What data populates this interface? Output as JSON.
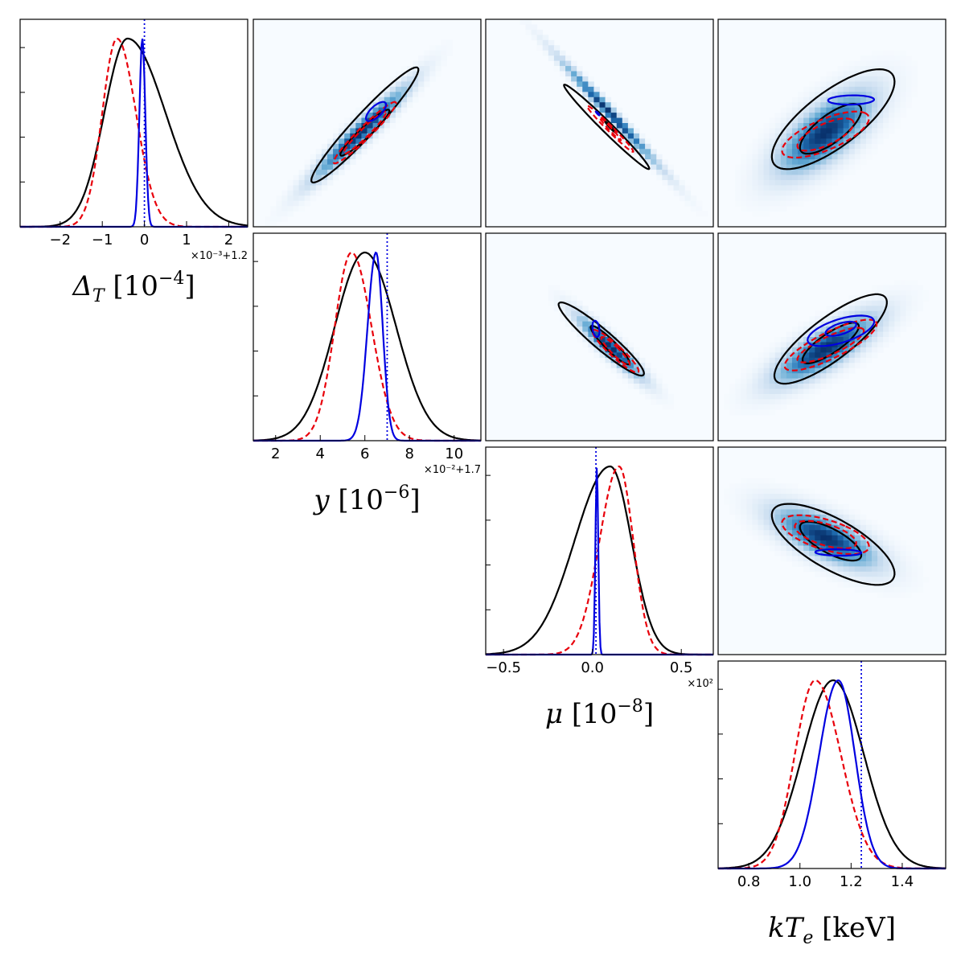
{
  "chart_data": {
    "type": "corner",
    "legend": "none",
    "grid": false,
    "colors": {
      "series_1": "#000000",
      "series_2": "#e8000b",
      "series_3": "#0000e0",
      "truth": "#0000e0",
      "density": "Blues"
    },
    "styles": {
      "series_1": "solid",
      "series_2": "dashed",
      "series_3": "solid",
      "truth": "dotted"
    },
    "parameters": [
      {
        "id": "deltaT",
        "label": "Δ_T [10^-4]",
        "label_parts": {
          "base": "Δ",
          "sub": "T",
          "unit_base": "10",
          "unit_exp": "−4"
        },
        "ticks": [
          -2,
          -1,
          0,
          1,
          2
        ],
        "tick_labels": [
          "−2",
          "−1",
          "0",
          "1",
          "2"
        ],
        "offset_text": "×10⁻³+1.2",
        "range": [
          -2.95,
          2.45
        ],
        "truth": 0.0,
        "marginals": [
          {
            "series": "series_1",
            "mean": -0.4,
            "sigma_left": 0.55,
            "sigma_right": 0.9
          },
          {
            "series": "series_2",
            "mean": -0.65,
            "sigma_left": 0.35,
            "sigma_right": 0.45
          },
          {
            "series": "series_3",
            "mean": -0.05,
            "sigma_left": 0.07,
            "sigma_right": 0.07
          }
        ]
      },
      {
        "id": "y",
        "label": "y [10^-6]",
        "label_parts": {
          "base": "y",
          "sub": "",
          "unit_base": "10",
          "unit_exp": "−6"
        },
        "ticks": [
          2,
          4,
          6,
          8,
          10
        ],
        "tick_labels": [
          "2",
          "4",
          "6",
          "8",
          "10"
        ],
        "offset_text": "×10⁻²+1.7",
        "range": [
          1.0,
          11.2
        ],
        "truth": 7.0,
        "marginals": [
          {
            "series": "series_1",
            "mean": 6.0,
            "sigma_left": 1.35,
            "sigma_right": 1.4
          },
          {
            "series": "series_2",
            "mean": 5.4,
            "sigma_left": 0.75,
            "sigma_right": 0.9
          },
          {
            "series": "series_3",
            "mean": 6.5,
            "sigma_left": 0.38,
            "sigma_right": 0.3
          }
        ]
      },
      {
        "id": "mu",
        "label": "μ [10^-8]",
        "label_parts": {
          "base": "μ",
          "sub": "",
          "unit_base": "10",
          "unit_exp": "−8"
        },
        "ticks": [
          -0.5,
          0.0,
          0.5
        ],
        "tick_labels": [
          "−0.5",
          "0.0",
          "0.5"
        ],
        "offset_text": "×10²",
        "range": [
          -0.6,
          0.68
        ],
        "truth": 0.02,
        "marginals": [
          {
            "series": "series_1",
            "mean": 0.1,
            "sigma_left": 0.2,
            "sigma_right": 0.12
          },
          {
            "series": "series_2",
            "mean": 0.15,
            "sigma_left": 0.11,
            "sigma_right": 0.08
          },
          {
            "series": "series_3",
            "mean": 0.025,
            "sigma_left": 0.008,
            "sigma_right": 0.008
          }
        ]
      },
      {
        "id": "kTe",
        "label": "kT_e [keV]",
        "label_parts": {
          "base": "kT",
          "sub": "e",
          "unit_base": "keV",
          "unit_exp": ""
        },
        "ticks": [
          0.8,
          1.0,
          1.2,
          1.4
        ],
        "tick_labels": [
          "0.8",
          "1.0",
          "1.2",
          "1.4"
        ],
        "offset_text": "",
        "range": [
          0.68,
          1.57
        ],
        "truth": 1.24,
        "marginals": [
          {
            "series": "series_1",
            "mean": 1.13,
            "sigma_left": 0.12,
            "sigma_right": 0.12
          },
          {
            "series": "series_2",
            "mean": 1.06,
            "sigma_left": 0.08,
            "sigma_right": 0.1
          },
          {
            "series": "series_3",
            "mean": 1.15,
            "sigma_left": 0.075,
            "sigma_right": 0.065
          }
        ]
      }
    ],
    "joint_panels": [
      {
        "id": "y-vs-deltaT",
        "row": 0,
        "col": 1,
        "x": "y",
        "y": "deltaT",
        "density": {
          "cx": 5.8,
          "cy": -0.5,
          "sx": 1.4,
          "sy": 0.8,
          "rho": 0.96
        },
        "contours": [
          {
            "series": "series_1",
            "level": "outer",
            "cx": 6.0,
            "cy": -0.3,
            "sx": 2.4,
            "sy": 1.5,
            "rho": 0.96
          },
          {
            "series": "series_1",
            "level": "inner",
            "cx": 6.0,
            "cy": -0.5,
            "sx": 1.1,
            "sy": 0.6,
            "rho": 0.95
          },
          {
            "series": "series_2",
            "level": "outer",
            "cx": 6.0,
            "cy": -0.5,
            "sx": 1.4,
            "sy": 0.8,
            "rho": 0.96
          },
          {
            "series": "series_2",
            "level": "inner",
            "cx": 6.0,
            "cy": -0.5,
            "sx": 0.95,
            "sy": 0.55,
            "rho": 0.96
          },
          {
            "series": "series_3",
            "level": "inner",
            "cx": 6.5,
            "cy": 0.05,
            "sx": 0.45,
            "sy": 0.25,
            "rho": 0.7
          }
        ]
      },
      {
        "id": "mu-vs-deltaT",
        "row": 0,
        "col": 2,
        "x": "mu",
        "y": "deltaT",
        "density": {
          "cx": 0.1,
          "cy": 0.0,
          "sx": 0.18,
          "sy": 0.9,
          "rho": -0.99
        },
        "contours": [
          {
            "series": "series_1",
            "level": "outer",
            "cx": 0.08,
            "cy": -0.35,
            "sx": 0.24,
            "sy": 1.1,
            "rho": -0.985
          },
          {
            "series": "series_1",
            "level": "inner",
            "cx": 0.1,
            "cy": -0.35,
            "sx": 0.03,
            "sy": 0.15,
            "rho": -0.98
          },
          {
            "series": "series_2",
            "level": "outer",
            "cx": 0.1,
            "cy": -0.4,
            "sx": 0.13,
            "sy": 0.6,
            "rho": -0.985
          },
          {
            "series": "series_2",
            "level": "inner",
            "cx": 0.1,
            "cy": -0.4,
            "sx": 0.06,
            "sy": 0.3,
            "rho": -0.985
          },
          {
            "series": "series_3",
            "level": "inner",
            "cx": 0.03,
            "cy": 0.0,
            "sx": 0.01,
            "sy": 0.05,
            "rho": -0.9
          }
        ]
      },
      {
        "id": "kTe-vs-deltaT",
        "row": 0,
        "col": 3,
        "x": "kTe",
        "y": "deltaT",
        "density": {
          "cx": 1.1,
          "cy": -0.5,
          "sx": 0.12,
          "sy": 0.7,
          "rho": 0.7
        },
        "contours": [
          {
            "series": "series_1",
            "level": "outer",
            "cx": 1.13,
            "cy": -0.15,
            "sx": 0.24,
            "sy": 1.3,
            "rho": 0.75
          },
          {
            "series": "series_1",
            "level": "inner",
            "cx": 1.12,
            "cy": -0.4,
            "sx": 0.12,
            "sy": 0.65,
            "rho": 0.75
          },
          {
            "series": "series_2",
            "level": "outer",
            "cx": 1.1,
            "cy": -0.55,
            "sx": 0.17,
            "sy": 0.6,
            "rho": 0.7
          },
          {
            "series": "series_2",
            "level": "inner",
            "cx": 1.1,
            "cy": -0.55,
            "sx": 0.11,
            "sy": 0.42,
            "rho": 0.7
          },
          {
            "series": "series_3",
            "level": "inner",
            "cx": 1.2,
            "cy": 0.35,
            "sx": 0.09,
            "sy": 0.12,
            "rho": 0.1
          }
        ]
      },
      {
        "id": "mu-vs-y",
        "row": 1,
        "col": 2,
        "x": "mu",
        "y": "y",
        "density": {
          "cx": 0.1,
          "cy": 5.6,
          "sx": 0.12,
          "sy": 1.0,
          "rho": -0.93
        },
        "contours": [
          {
            "series": "series_1",
            "level": "outer",
            "cx": 0.05,
            "cy": 6.0,
            "sx": 0.24,
            "sy": 1.8,
            "rho": -0.94
          },
          {
            "series": "series_1",
            "level": "inner",
            "cx": 0.1,
            "cy": 5.7,
            "sx": 0.11,
            "sy": 0.95,
            "rho": -0.93
          },
          {
            "series": "series_2",
            "level": "outer",
            "cx": 0.13,
            "cy": 5.4,
            "sx": 0.13,
            "sy": 1.05,
            "rho": -0.93
          },
          {
            "series": "series_2",
            "level": "inner",
            "cx": 0.13,
            "cy": 5.4,
            "sx": 0.08,
            "sy": 0.7,
            "rho": -0.93
          },
          {
            "series": "series_3",
            "level": "inner",
            "cx": 0.02,
            "cy": 6.5,
            "sx": 0.02,
            "sy": 0.4,
            "rho": -0.3
          }
        ]
      },
      {
        "id": "kTe-vs-y",
        "row": 1,
        "col": 3,
        "x": "kTe",
        "y": "y",
        "density": {
          "cx": 1.1,
          "cy": 5.5,
          "sx": 0.13,
          "sy": 1.1,
          "rho": 0.8
        },
        "contours": [
          {
            "series": "series_1",
            "level": "outer",
            "cx": 1.12,
            "cy": 6.0,
            "sx": 0.22,
            "sy": 2.2,
            "rho": 0.82
          },
          {
            "series": "series_1",
            "level": "inner",
            "cx": 1.12,
            "cy": 5.8,
            "sx": 0.11,
            "sy": 1.0,
            "rho": 0.82
          },
          {
            "series": "series_2",
            "level": "outer",
            "cx": 1.12,
            "cy": 5.7,
            "sx": 0.18,
            "sy": 1.25,
            "rho": 0.82
          },
          {
            "series": "series_2",
            "level": "inner",
            "cx": 1.12,
            "cy": 5.7,
            "sx": 0.13,
            "sy": 0.85,
            "rho": 0.82
          },
          {
            "series": "series_3",
            "level": "outer",
            "cx": 1.16,
            "cy": 6.4,
            "sx": 0.13,
            "sy": 0.75,
            "rho": 0.6
          },
          {
            "series": "series_3",
            "level": "inner",
            "cx": 1.16,
            "cy": 6.5,
            "sx": 0.06,
            "sy": 0.35,
            "rho": 0.6
          }
        ]
      },
      {
        "id": "kTe-vs-mu",
        "row": 2,
        "col": 3,
        "x": "kTe",
        "y": "mu",
        "density": {
          "cx": 1.1,
          "cy": 0.12,
          "sx": 0.13,
          "sy": 0.12,
          "rho": -0.7
        },
        "contours": [
          {
            "series": "series_1",
            "level": "outer",
            "cx": 1.13,
            "cy": 0.08,
            "sx": 0.24,
            "sy": 0.25,
            "rho": -0.72
          },
          {
            "series": "series_1",
            "level": "inner",
            "cx": 1.12,
            "cy": 0.1,
            "sx": 0.12,
            "sy": 0.12,
            "rho": -0.72
          },
          {
            "series": "series_2",
            "level": "outer",
            "cx": 1.1,
            "cy": 0.14,
            "sx": 0.17,
            "sy": 0.12,
            "rho": -0.6
          },
          {
            "series": "series_2",
            "level": "inner",
            "cx": 1.1,
            "cy": 0.14,
            "sx": 0.12,
            "sy": 0.085,
            "rho": -0.6
          },
          {
            "series": "series_3",
            "level": "inner",
            "cx": 1.15,
            "cy": 0.03,
            "sx": 0.09,
            "sy": 0.02,
            "rho": -0.1
          }
        ]
      }
    ]
  }
}
